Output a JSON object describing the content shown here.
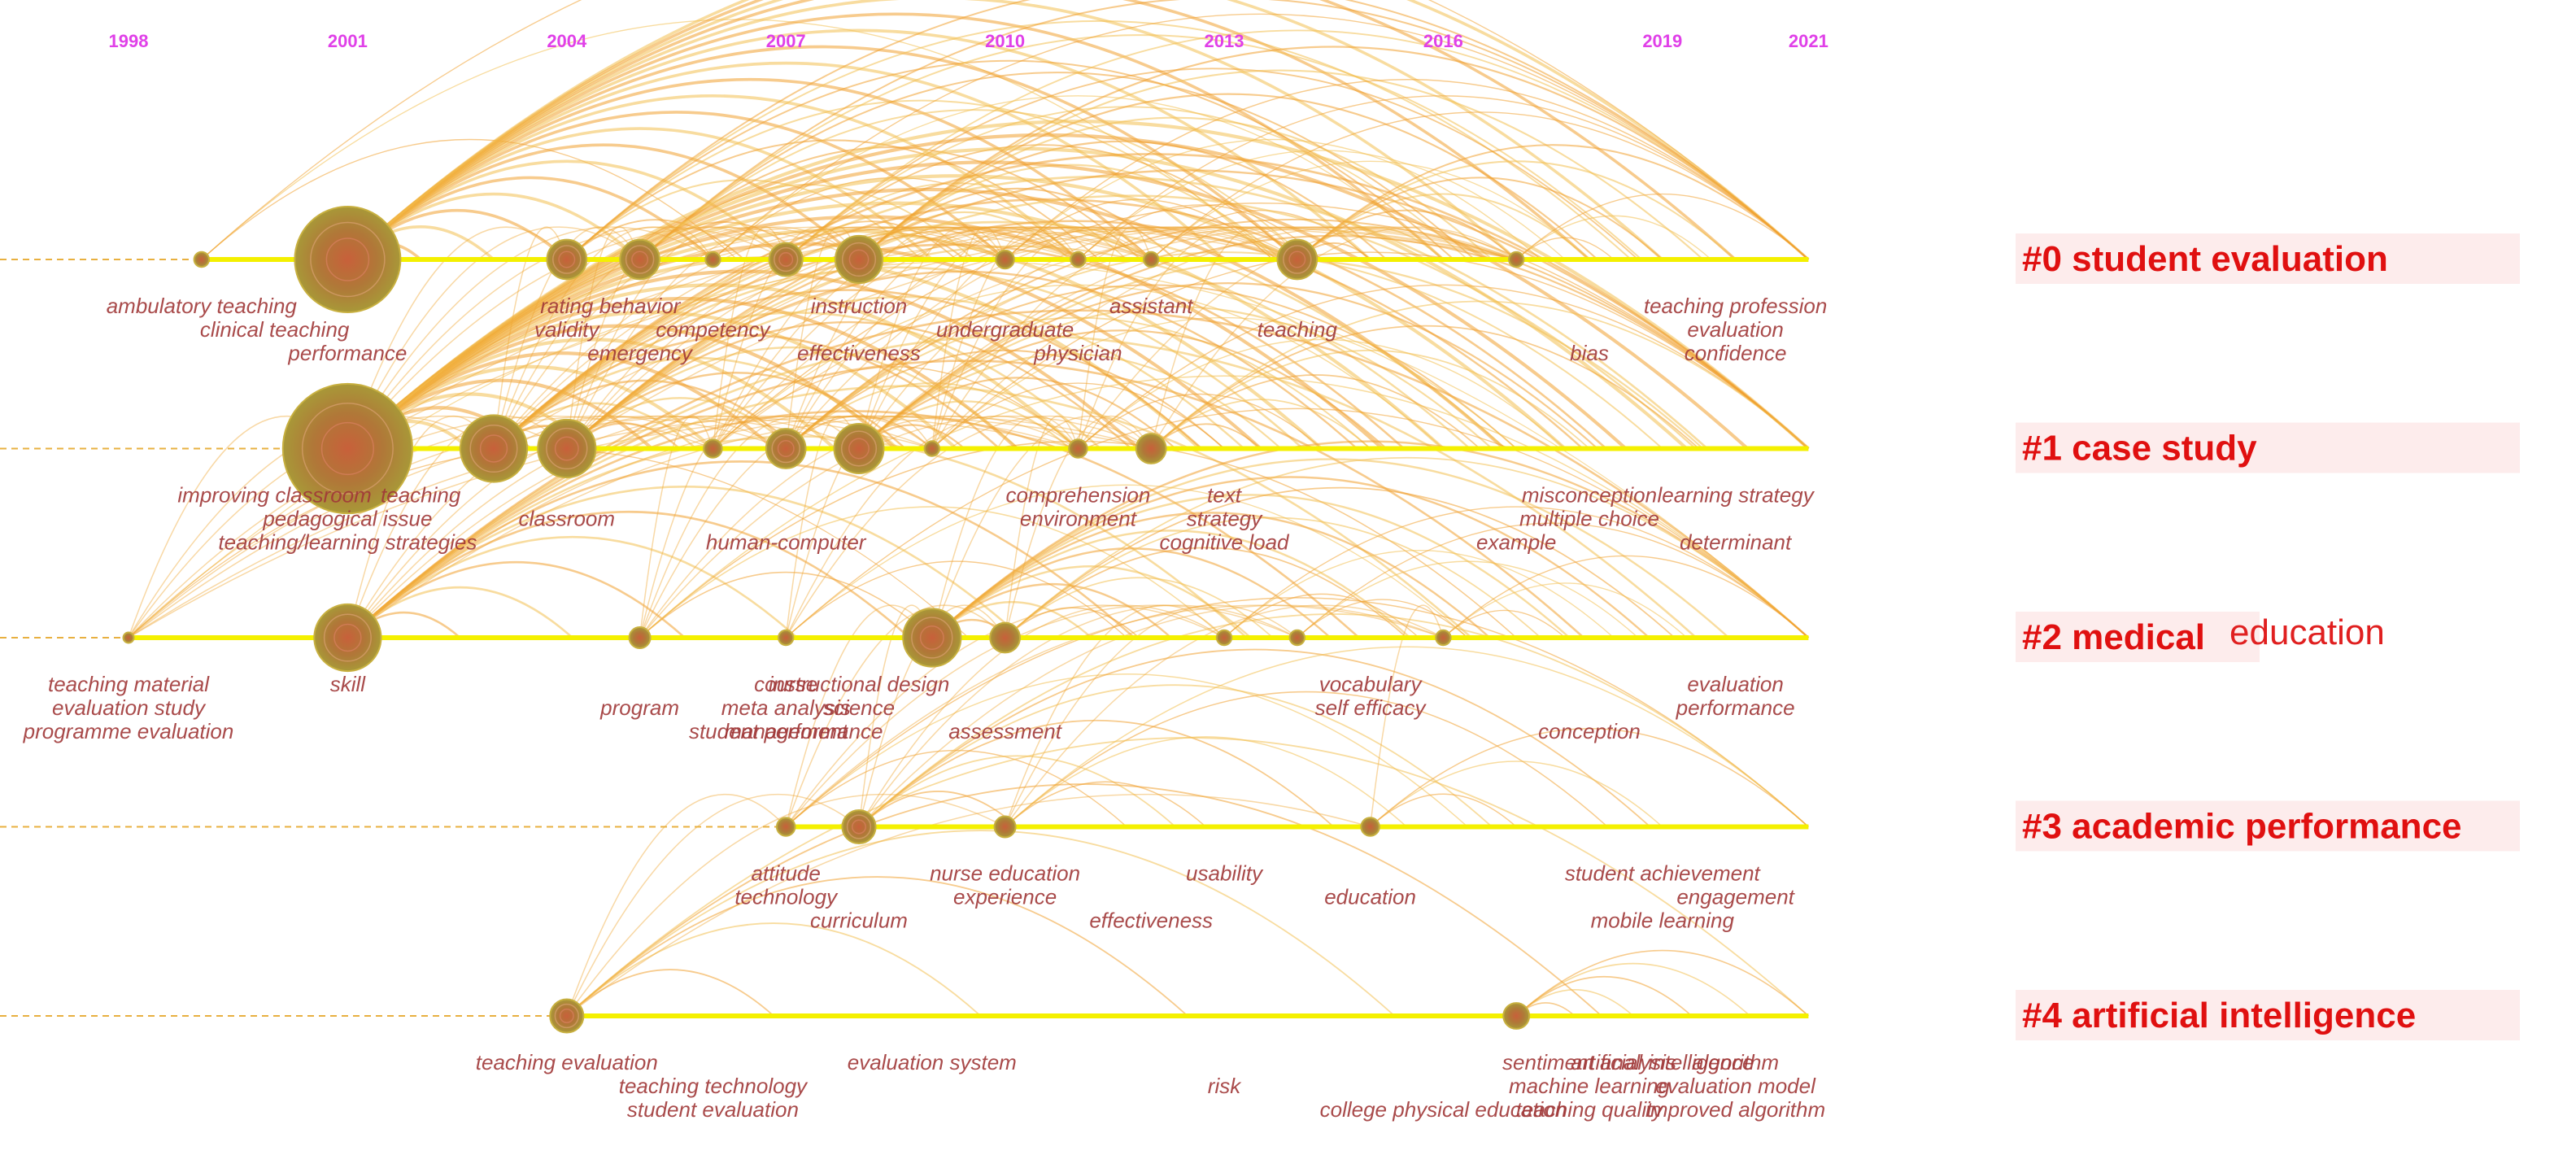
{
  "years": [
    1998,
    2001,
    2004,
    2007,
    2010,
    2013,
    2016,
    2019,
    2021
  ],
  "clusters": [
    {
      "label": "#0 student evaluation",
      "nodes": [
        {
          "year": 1999,
          "size": 2
        },
        {
          "year": 2001,
          "size": 100
        },
        {
          "year": 2004,
          "size": 14
        },
        {
          "year": 2005,
          "size": 14
        },
        {
          "year": 2006,
          "size": 2
        },
        {
          "year": 2007,
          "size": 10
        },
        {
          "year": 2008,
          "size": 20
        },
        {
          "year": 2010,
          "size": 3
        },
        {
          "year": 2011,
          "size": 2
        },
        {
          "year": 2012,
          "size": 2
        },
        {
          "year": 2014,
          "size": 14
        },
        {
          "year": 2017,
          "size": 2
        }
      ],
      "keywords": [
        {
          "label": "ambulatory teaching",
          "year": 1999
        },
        {
          "label": "clinical teaching",
          "year": 2000
        },
        {
          "label": "performance",
          "year": 2001
        },
        {
          "label": "rating",
          "year": 2004
        },
        {
          "label": "validity",
          "year": 2004
        },
        {
          "label": "emergency",
          "year": 2005
        },
        {
          "label": "behavior",
          "year": 2005
        },
        {
          "label": "competency",
          "year": 2006
        },
        {
          "label": "effectiveness",
          "year": 2008
        },
        {
          "label": "instruction",
          "year": 2008
        },
        {
          "label": "undergraduate",
          "year": 2010
        },
        {
          "label": "physician",
          "year": 2011
        },
        {
          "label": "assistant",
          "year": 2012
        },
        {
          "label": "teaching",
          "year": 2014
        },
        {
          "label": "bias",
          "year": 2018
        },
        {
          "label": "teaching profession",
          "year": 2020
        },
        {
          "label": "evaluation",
          "year": 2020
        },
        {
          "label": "confidence",
          "year": 2020
        }
      ]
    },
    {
      "label": "#1 case study",
      "nodes": [
        {
          "year": 2001,
          "size": 150
        },
        {
          "year": 2003,
          "size": 40
        },
        {
          "year": 2004,
          "size": 30
        },
        {
          "year": 2006,
          "size": 3
        },
        {
          "year": 2007,
          "size": 14
        },
        {
          "year": 2008,
          "size": 22
        },
        {
          "year": 2009,
          "size": 2
        },
        {
          "year": 2011,
          "size": 3
        },
        {
          "year": 2012,
          "size": 8
        }
      ],
      "keywords": [
        {
          "label": "improving classroom",
          "year": 2000
        },
        {
          "label": "pedagogical issue",
          "year": 2001
        },
        {
          "label": "teaching/learning strategies",
          "year": 2001
        },
        {
          "label": "teaching",
          "year": 2002
        },
        {
          "label": "classroom",
          "year": 2004
        },
        {
          "label": "human-computer",
          "year": 2007
        },
        {
          "label": "comprehension",
          "year": 2011
        },
        {
          "label": "environment",
          "year": 2011
        },
        {
          "label": "cognitive load",
          "year": 2013
        },
        {
          "label": "text",
          "year": 2013
        },
        {
          "label": "strategy",
          "year": 2013
        },
        {
          "label": "example",
          "year": 2017
        },
        {
          "label": "misconception",
          "year": 2018
        },
        {
          "label": "multiple choice",
          "year": 2018
        },
        {
          "label": "determinant",
          "year": 2020
        },
        {
          "label": "learning strategy",
          "year": 2020
        }
      ]
    },
    {
      "label": "#2 medical",
      "label_suffix": "education",
      "nodes": [
        {
          "year": 1998,
          "size": 1
        },
        {
          "year": 2001,
          "size": 40
        },
        {
          "year": 2005,
          "size": 4
        },
        {
          "year": 2007,
          "size": 2
        },
        {
          "year": 2009,
          "size": 30
        },
        {
          "year": 2010,
          "size": 8
        },
        {
          "year": 2013,
          "size": 2
        },
        {
          "year": 2014,
          "size": 2
        },
        {
          "year": 2016,
          "size": 2
        }
      ],
      "keywords": [
        {
          "label": "teaching material",
          "year": 1998
        },
        {
          "label": "evaluation study",
          "year": 1998
        },
        {
          "label": "programme evaluation",
          "year": 1998
        },
        {
          "label": "skill",
          "year": 2001
        },
        {
          "label": "program",
          "year": 2005
        },
        {
          "label": "management",
          "year": 2007
        },
        {
          "label": "course",
          "year": 2007
        },
        {
          "label": "meta analysis",
          "year": 2007
        },
        {
          "label": "student performance",
          "year": 2007
        },
        {
          "label": "instructional design",
          "year": 2008
        },
        {
          "label": "science",
          "year": 2008
        },
        {
          "label": "assessment",
          "year": 2010
        },
        {
          "label": "vocabulary",
          "year": 2015
        },
        {
          "label": "self efficacy",
          "year": 2015
        },
        {
          "label": "conception",
          "year": 2018
        },
        {
          "label": "evaluation",
          "year": 2020
        },
        {
          "label": "performance",
          "year": 2020
        }
      ]
    },
    {
      "label": "#3 academic performance",
      "nodes": [
        {
          "year": 2007,
          "size": 3
        },
        {
          "year": 2008,
          "size": 10
        },
        {
          "year": 2010,
          "size": 4
        },
        {
          "year": 2015,
          "size": 3
        }
      ],
      "keywords": [
        {
          "label": "attitude",
          "year": 2007
        },
        {
          "label": "technology",
          "year": 2007
        },
        {
          "label": "curriculum",
          "year": 2008
        },
        {
          "label": "nurse education",
          "year": 2010
        },
        {
          "label": "experience",
          "year": 2010
        },
        {
          "label": "effectiveness",
          "year": 2012
        },
        {
          "label": "usability",
          "year": 2013
        },
        {
          "label": "education",
          "year": 2015
        },
        {
          "label": "mobile learning",
          "year": 2019
        },
        {
          "label": "student achievement",
          "year": 2019
        },
        {
          "label": "engagement",
          "year": 2020
        }
      ]
    },
    {
      "label": "#4 artificial intelligence",
      "nodes": [
        {
          "year": 2004,
          "size": 10
        },
        {
          "year": 2017,
          "size": 6
        }
      ],
      "keywords": [
        {
          "label": "teaching evaluation",
          "year": 2004
        },
        {
          "label": "teaching technology",
          "year": 2006
        },
        {
          "label": "student evaluation",
          "year": 2006
        },
        {
          "label": "evaluation system",
          "year": 2009
        },
        {
          "label": "risk",
          "year": 2013
        },
        {
          "label": "college physical education",
          "year": 2016
        },
        {
          "label": "sentiment analysis",
          "year": 2018
        },
        {
          "label": "machine learning",
          "year": 2018
        },
        {
          "label": "teaching quality",
          "year": 2018
        },
        {
          "label": "artificial intelligence",
          "year": 2019
        },
        {
          "label": "evaluation model",
          "year": 2020
        },
        {
          "label": "improved algorithm",
          "year": 2020
        },
        {
          "label": "algorithm",
          "year": 2020
        }
      ]
    }
  ]
}
